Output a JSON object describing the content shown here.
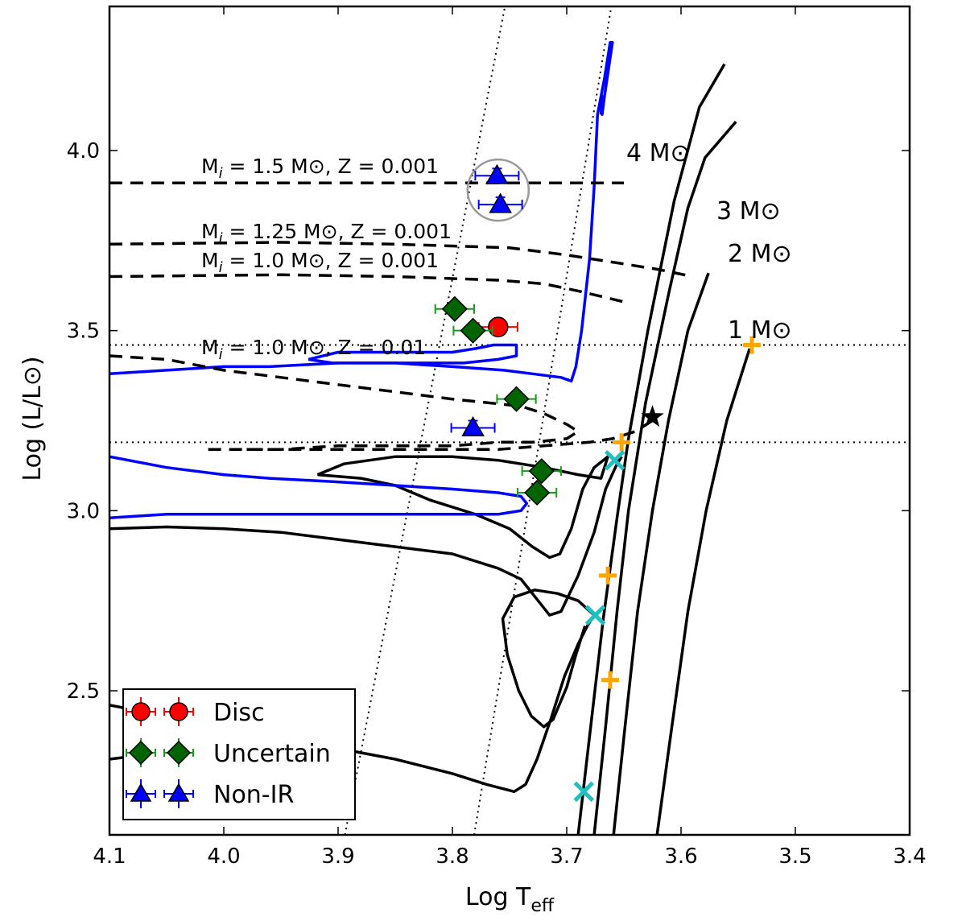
{
  "chart_data": {
    "type": "scatter",
    "xlabel": "Log T",
    "xlabel_sub": "eff",
    "ylabel": "Log (L/L⊙)",
    "xlim": [
      4.1,
      3.4
    ],
    "ylim": [
      2.1,
      4.4
    ],
    "x_ticks": [
      4.1,
      4.0,
      3.9,
      3.8,
      3.7,
      3.6,
      3.5,
      3.4
    ],
    "x_tick_labels": [
      "4.1",
      "4.0",
      "3.9",
      "3.8",
      "3.7",
      "3.6",
      "3.5",
      "3.4"
    ],
    "y_ticks": [
      2.5,
      3.0,
      3.5,
      4.0
    ],
    "y_tick_labels": [
      "2.5",
      "3.0",
      "3.5",
      "4.0"
    ],
    "legend_position": "lower-left",
    "series": [
      {
        "name": "Disc",
        "marker": "circle",
        "color": "#ff0000",
        "points": [
          {
            "x": 3.76,
            "y": 3.51,
            "xerr": 0.017,
            "yerr": 0.02
          }
        ]
      },
      {
        "name": "Uncertain",
        "marker": "diamond",
        "color": "#006400",
        "errcolor": "#1a9a1a",
        "points": [
          {
            "x": 3.798,
            "y": 3.56,
            "xerr": 0.017,
            "yerr": 0.02
          },
          {
            "x": 3.782,
            "y": 3.5,
            "xerr": 0.017,
            "yerr": 0.02
          },
          {
            "x": 3.744,
            "y": 3.31,
            "xerr": 0.017,
            "yerr": 0.02
          },
          {
            "x": 3.722,
            "y": 3.11,
            "xerr": 0.017,
            "yerr": 0.02
          },
          {
            "x": 3.726,
            "y": 3.05,
            "xerr": 0.017,
            "yerr": 0.02
          }
        ]
      },
      {
        "name": "Non-IR",
        "marker": "triangle",
        "color": "#0000ff",
        "points": [
          {
            "x": 3.761,
            "y": 3.93,
            "xerr": 0.019,
            "yerr": 0.02
          },
          {
            "x": 3.758,
            "y": 3.85,
            "xerr": 0.019,
            "yerr": 0.02
          },
          {
            "x": 3.782,
            "y": 3.23,
            "xerr": 0.019,
            "yerr": 0.02
          }
        ]
      }
    ],
    "highlight_circle": {
      "x": 3.76,
      "y": 3.89
    },
    "extra_markers": {
      "orange_plus": [
        {
          "x": 3.652,
          "y": 3.19
        },
        {
          "x": 3.664,
          "y": 2.82
        },
        {
          "x": 3.662,
          "y": 2.53
        },
        {
          "x": 3.538,
          "y": 3.46
        }
      ],
      "cyan_x": [
        {
          "x": 3.658,
          "y": 3.14
        },
        {
          "x": 3.675,
          "y": 2.71
        },
        {
          "x": 3.685,
          "y": 2.22
        }
      ],
      "black_star": [
        {
          "x": 3.625,
          "y": 3.26
        }
      ]
    },
    "horizontal_dotted_lines": [
      3.46,
      3.19
    ],
    "sloped_dotted_lines": [
      {
        "points": [
          [
            3.894,
            2.1
          ],
          [
            3.754,
            4.4
          ]
        ]
      },
      {
        "points": [
          [
            3.781,
            2.1
          ],
          [
            3.661,
            4.4
          ]
        ]
      }
    ],
    "black_tracks": [
      {
        "label": "4 M⊙",
        "points": [
          [
            3.69,
            2.1
          ],
          [
            3.682,
            2.32
          ],
          [
            3.668,
            2.7
          ],
          [
            3.656,
            2.98
          ],
          [
            3.646,
            3.2
          ],
          [
            3.629,
            3.5
          ],
          [
            3.606,
            3.86
          ],
          [
            3.584,
            4.12
          ],
          [
            3.562,
            4.24
          ]
        ]
      },
      {
        "label": "3 M⊙",
        "points": [
          [
            3.676,
            2.1
          ],
          [
            3.666,
            2.4
          ],
          [
            3.656,
            2.72
          ],
          [
            3.646,
            3.0
          ],
          [
            3.631,
            3.3
          ],
          [
            3.611,
            3.6
          ],
          [
            3.594,
            3.84
          ],
          [
            3.579,
            3.98
          ],
          [
            3.552,
            4.08
          ]
        ]
      },
      {
        "label": "2 M⊙",
        "points": [
          [
            3.659,
            2.1
          ],
          [
            3.649,
            2.4
          ],
          [
            3.638,
            2.72
          ],
          [
            3.625,
            3.0
          ],
          [
            3.611,
            3.25
          ],
          [
            3.594,
            3.5
          ],
          [
            3.576,
            3.66
          ]
        ]
      },
      {
        "label": "1 M⊙",
        "points": [
          [
            3.621,
            2.1
          ],
          [
            3.608,
            2.4
          ],
          [
            3.594,
            2.72
          ],
          [
            3.578,
            3.0
          ],
          [
            3.56,
            3.25
          ],
          [
            3.54,
            3.45
          ]
        ]
      },
      {
        "label": "",
        "points": [
          [
            4.1,
            2.95
          ],
          [
            4.05,
            2.955
          ],
          [
            4.0,
            2.95
          ],
          [
            3.95,
            2.94
          ],
          [
            3.9,
            2.92
          ],
          [
            3.85,
            2.9
          ],
          [
            3.8,
            2.88
          ],
          [
            3.76,
            2.84
          ],
          [
            3.74,
            2.81
          ],
          [
            3.725,
            2.75
          ],
          [
            3.715,
            2.71
          ],
          [
            3.705,
            2.72
          ],
          [
            3.69,
            2.82
          ],
          [
            3.676,
            2.94
          ],
          [
            3.666,
            3.06
          ],
          [
            3.656,
            3.13
          ],
          [
            3.652,
            3.15
          ]
        ]
      },
      {
        "label": "",
        "points": [
          [
            3.918,
            3.1
          ],
          [
            3.88,
            3.09
          ],
          [
            3.85,
            3.07
          ],
          [
            3.82,
            3.03
          ],
          [
            3.78,
            2.99
          ],
          [
            3.75,
            2.95
          ],
          [
            3.73,
            2.9
          ],
          [
            3.715,
            2.87
          ],
          [
            3.706,
            2.88
          ],
          [
            3.696,
            2.95
          ],
          [
            3.686,
            3.06
          ],
          [
            3.676,
            3.12
          ],
          [
            3.664,
            3.15
          ],
          [
            3.67,
            3.09
          ],
          [
            3.69,
            3.1
          ],
          [
            3.72,
            3.12
          ],
          [
            3.76,
            3.14
          ],
          [
            3.8,
            3.15
          ],
          [
            3.85,
            3.15
          ],
          [
            3.895,
            3.13
          ],
          [
            3.918,
            3.1
          ]
        ]
      },
      {
        "label": "",
        "points": [
          [
            4.1,
            2.46
          ],
          [
            4.05,
            2.43
          ],
          [
            4.0,
            2.4
          ],
          [
            3.95,
            2.37
          ],
          [
            3.9,
            2.34
          ],
          [
            3.85,
            2.31
          ],
          [
            3.8,
            2.27
          ],
          [
            3.77,
            2.24
          ],
          [
            3.746,
            2.22
          ],
          [
            3.736,
            2.24
          ],
          [
            3.726,
            2.31
          ],
          [
            3.714,
            2.42
          ],
          [
            3.702,
            2.54
          ],
          [
            3.69,
            2.63
          ],
          [
            3.682,
            2.68
          ],
          [
            3.676,
            2.71
          ]
        ]
      },
      {
        "label": "",
        "points": [
          [
            4.1,
            2.31
          ],
          [
            4.05,
            2.33
          ],
          [
            4.0,
            2.36
          ]
        ]
      },
      {
        "label": "",
        "points": [
          [
            3.676,
            2.71
          ],
          [
            3.69,
            2.75
          ],
          [
            3.708,
            2.77
          ],
          [
            3.728,
            2.78
          ],
          [
            3.746,
            2.76
          ],
          [
            3.756,
            2.7
          ],
          [
            3.752,
            2.6
          ],
          [
            3.742,
            2.5
          ],
          [
            3.731,
            2.43
          ],
          [
            3.72,
            2.4
          ],
          [
            3.712,
            2.42
          ],
          [
            3.7,
            2.51
          ],
          [
            3.692,
            2.6
          ],
          [
            3.684,
            2.68
          ]
        ]
      }
    ],
    "blue_track": {
      "points": [
        [
          4.1,
          3.38
        ],
        [
          4.05,
          3.39
        ],
        [
          4.0,
          3.4
        ],
        [
          3.96,
          3.4
        ],
        [
          3.9,
          3.41
        ],
        [
          3.85,
          3.41
        ],
        [
          3.8,
          3.4
        ],
        [
          3.755,
          3.39
        ],
        [
          3.73,
          3.38
        ],
        [
          3.705,
          3.37
        ],
        [
          3.696,
          3.36
        ],
        [
          3.692,
          3.4
        ],
        [
          3.687,
          3.5
        ],
        [
          3.68,
          3.7
        ],
        [
          3.676,
          3.9
        ],
        [
          3.673,
          4.1
        ],
        [
          3.667,
          4.2
        ],
        [
          3.662,
          4.3
        ],
        [
          3.66,
          4.3
        ],
        [
          3.667,
          4.15
        ],
        [
          3.669,
          4.1
        ],
        [
          3.669,
          4.15
        ],
        [
          3.67,
          4.1
        ]
      ],
      "loop_a": [
        [
          4.1,
          3.15
        ],
        [
          4.05,
          3.12
        ],
        [
          4.0,
          3.1
        ],
        [
          3.96,
          3.09
        ],
        [
          3.9,
          3.08
        ],
        [
          3.85,
          3.07
        ],
        [
          3.8,
          3.06
        ],
        [
          3.76,
          3.05
        ],
        [
          3.74,
          3.04
        ],
        [
          3.735,
          3.02
        ],
        [
          3.74,
          3.0
        ],
        [
          3.76,
          2.99
        ],
        [
          3.8,
          2.99
        ],
        [
          3.85,
          2.99
        ],
        [
          3.9,
          2.99
        ],
        [
          3.95,
          2.99
        ],
        [
          4.0,
          2.99
        ],
        [
          4.05,
          2.99
        ],
        [
          4.1,
          2.98
        ]
      ],
      "loop_b": [
        [
          3.926,
          3.42
        ],
        [
          3.9,
          3.44
        ],
        [
          3.87,
          3.44
        ],
        [
          3.83,
          3.44
        ],
        [
          3.8,
          3.44
        ],
        [
          3.78,
          3.45
        ],
        [
          3.764,
          3.46
        ],
        [
          3.744,
          3.46
        ],
        [
          3.744,
          3.43
        ],
        [
          3.76,
          3.42
        ],
        [
          3.79,
          3.41
        ],
        [
          3.83,
          3.41
        ],
        [
          3.87,
          3.41
        ],
        [
          3.905,
          3.41
        ],
        [
          3.926,
          3.42
        ]
      ]
    },
    "dashed_tracks": [
      {
        "label": "M",
        "label_sub": "i",
        "label_rest": " = 1.5 M⊙, Z = 0.001",
        "points": [
          [
            4.1,
            3.91
          ],
          [
            3.65,
            3.91
          ]
        ]
      },
      {
        "label": "M",
        "label_sub": "i",
        "label_rest": " = 1.25 M⊙, Z = 0.001",
        "points": [
          [
            4.1,
            3.74
          ],
          [
            3.95,
            3.745
          ],
          [
            3.85,
            3.74
          ],
          [
            3.75,
            3.73
          ],
          [
            3.7,
            3.71
          ],
          [
            3.66,
            3.69
          ],
          [
            3.62,
            3.67
          ],
          [
            3.59,
            3.65
          ]
        ]
      },
      {
        "label": "M",
        "label_sub": "i",
        "label_rest": " = 1.0 M⊙, Z = 0.001",
        "points": [
          [
            4.1,
            3.65
          ],
          [
            3.95,
            3.655
          ],
          [
            3.85,
            3.65
          ],
          [
            3.76,
            3.64
          ],
          [
            3.72,
            3.63
          ],
          [
            3.69,
            3.61
          ],
          [
            3.65,
            3.58
          ]
        ]
      },
      {
        "label": "M",
        "label_sub": "i",
        "label_rest": " = 1.0 M⊙, Z = 0.01",
        "points": [
          [
            4.1,
            3.43
          ],
          [
            4.05,
            3.42
          ],
          [
            4.0,
            3.39
          ],
          [
            3.95,
            3.37
          ],
          [
            3.9,
            3.35
          ],
          [
            3.85,
            3.33
          ],
          [
            3.8,
            3.31
          ],
          [
            3.77,
            3.3
          ],
          [
            3.74,
            3.29
          ],
          [
            3.72,
            3.27
          ],
          [
            3.7,
            3.24
          ],
          [
            3.69,
            3.22
          ],
          [
            3.7,
            3.2
          ],
          [
            3.73,
            3.19
          ],
          [
            3.76,
            3.19
          ],
          [
            3.8,
            3.18
          ],
          [
            3.85,
            3.18
          ],
          [
            3.9,
            3.18
          ],
          [
            3.95,
            3.17
          ],
          [
            4.0,
            3.17
          ],
          [
            4.015,
            3.17
          ]
        ]
      },
      {
        "label": "",
        "points": [
          [
            3.98,
            3.17
          ],
          [
            3.9,
            3.17
          ],
          [
            3.85,
            3.17
          ],
          [
            3.8,
            3.17
          ],
          [
            3.76,
            3.17
          ],
          [
            3.72,
            3.18
          ],
          [
            3.68,
            3.19
          ],
          [
            3.66,
            3.2
          ],
          [
            3.64,
            3.22
          ],
          [
            3.62,
            3.26
          ]
        ]
      }
    ]
  }
}
